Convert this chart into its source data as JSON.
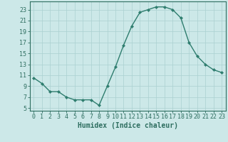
{
  "x": [
    0,
    1,
    2,
    3,
    4,
    5,
    6,
    7,
    8,
    9,
    10,
    11,
    12,
    13,
    14,
    15,
    16,
    17,
    18,
    19,
    20,
    21,
    22,
    23
  ],
  "y": [
    10.5,
    9.5,
    8.0,
    8.0,
    7.0,
    6.5,
    6.5,
    6.5,
    5.5,
    9.0,
    12.5,
    16.5,
    20.0,
    22.5,
    23.0,
    23.5,
    23.5,
    23.0,
    21.5,
    17.0,
    14.5,
    13.0,
    12.0,
    11.5
  ],
  "line_color": "#2e7d6e",
  "marker": "D",
  "marker_size": 2.2,
  "bg_color": "#cce8e8",
  "grid_color": "#aad0d0",
  "xlabel": "Humidex (Indice chaleur)",
  "xlim": [
    -0.5,
    23.5
  ],
  "ylim": [
    4.5,
    24.5
  ],
  "yticks": [
    5,
    7,
    9,
    11,
    13,
    15,
    17,
    19,
    21,
    23
  ],
  "xticks": [
    0,
    1,
    2,
    3,
    4,
    5,
    6,
    7,
    8,
    9,
    10,
    11,
    12,
    13,
    14,
    15,
    16,
    17,
    18,
    19,
    20,
    21,
    22,
    23
  ],
  "tick_color": "#2e6e60",
  "axis_color": "#2e6e60",
  "label_fontsize": 7,
  "tick_fontsize": 6
}
